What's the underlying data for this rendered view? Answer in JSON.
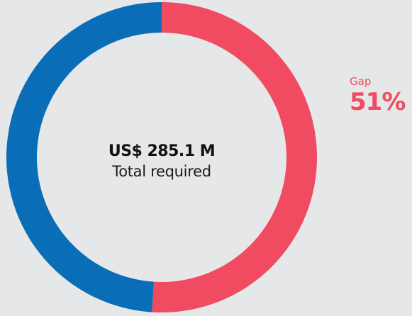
{
  "colors": {
    "background": "#e6e7e8",
    "gap": "#f04b61",
    "funded": "#0a6db7",
    "text_dark": "#111111"
  },
  "center": {
    "value": "US$ 285.1 M",
    "label": "Total required"
  },
  "gap_callout": {
    "label": "Gap",
    "value": "51%"
  },
  "chart_data": {
    "type": "pie",
    "donut": true,
    "start": "top",
    "direction": "clockwise",
    "categories": [
      "Gap",
      ""
    ],
    "values": [
      51,
      49
    ],
    "unit": "%",
    "colors": [
      "#f04b61",
      "#0a6db7"
    ],
    "title": "",
    "legend": "none"
  }
}
